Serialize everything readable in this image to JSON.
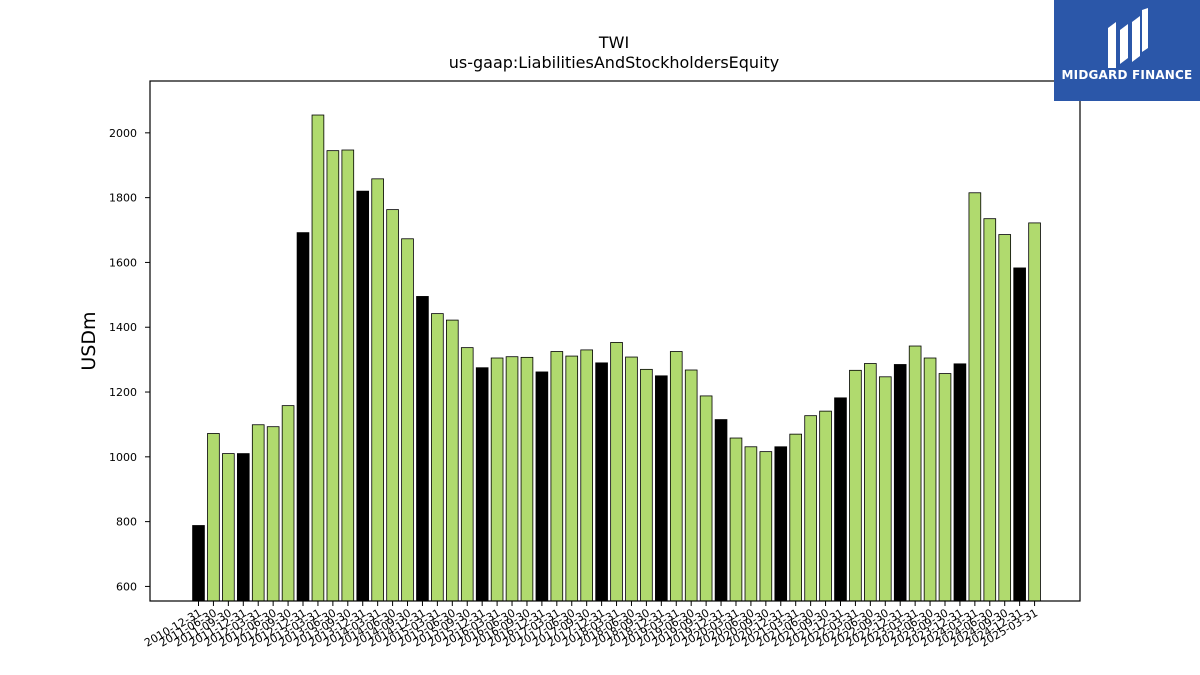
{
  "chart_data": {
    "type": "bar",
    "title": "TWI",
    "subtitle": "us-gaap:LiabilitiesAndStockholdersEquity",
    "xlabel": "",
    "ylabel": "USDm",
    "ylim": [
      555,
      2160
    ],
    "yticks": [
      600,
      800,
      1000,
      1200,
      1400,
      1600,
      1800,
      2000
    ],
    "grid": false,
    "colors": {
      "annual": "#000000",
      "quarterly": "#b0da6e",
      "edge": "#000000"
    },
    "categories": [
      "2010-12-31",
      "2011-06-30",
      "2011-09-30",
      "2011-12-31",
      "2012-03-31",
      "2012-06-30",
      "2012-09-30",
      "2012-12-31",
      "2013-03-31",
      "2013-06-30",
      "2013-09-30",
      "2013-12-31",
      "2014-03-31",
      "2014-06-30",
      "2014-09-30",
      "2014-12-31",
      "2015-03-31",
      "2015-06-30",
      "2015-09-30",
      "2015-12-31",
      "2016-03-31",
      "2016-06-30",
      "2016-09-30",
      "2016-12-31",
      "2017-03-31",
      "2017-06-30",
      "2017-09-30",
      "2017-12-31",
      "2018-03-31",
      "2018-06-30",
      "2018-09-30",
      "2018-12-31",
      "2019-03-31",
      "2019-06-30",
      "2019-09-30",
      "2019-12-31",
      "2020-03-31",
      "2020-06-30",
      "2020-09-30",
      "2020-12-31",
      "2021-03-31",
      "2021-06-30",
      "2021-09-30",
      "2021-12-31",
      "2022-03-31",
      "2022-06-30",
      "2022-09-30",
      "2022-12-31",
      "2023-03-31",
      "2023-06-30",
      "2023-09-30",
      "2023-12-31",
      "2024-03-31",
      "2024-06-30",
      "2024-09-30",
      "2024-12-31",
      "2025-03-31"
    ],
    "values": [
      788,
      1072,
      1010,
      1010,
      1099,
      1093,
      1158,
      1692,
      2055,
      1945,
      1947,
      1820,
      1858,
      1763,
      1673,
      1495,
      1442,
      1422,
      1337,
      1275,
      1305,
      1309,
      1307,
      1262,
      1325,
      1311,
      1330,
      1290,
      1353,
      1308,
      1270,
      1250,
      1325,
      1268,
      1188,
      1115,
      1058,
      1031,
      1016,
      1031,
      1070,
      1127,
      1141,
      1182,
      1267,
      1288,
      1247,
      1285,
      1342,
      1305,
      1257,
      1287,
      1815,
      1735,
      1686,
      1583,
      1722
    ],
    "annual_flags": [
      true,
      false,
      false,
      true,
      false,
      false,
      false,
      true,
      false,
      false,
      false,
      true,
      false,
      false,
      false,
      true,
      false,
      false,
      false,
      true,
      false,
      false,
      false,
      true,
      false,
      false,
      false,
      true,
      false,
      false,
      false,
      true,
      false,
      false,
      false,
      true,
      false,
      false,
      false,
      true,
      false,
      false,
      false,
      true,
      false,
      false,
      false,
      true,
      false,
      false,
      false,
      true,
      false,
      false,
      false,
      true,
      false
    ]
  },
  "logo": {
    "text": "MIDGARD FINANCE",
    "icon": "midgard-logo-icon",
    "background": "#2b57a9"
  }
}
